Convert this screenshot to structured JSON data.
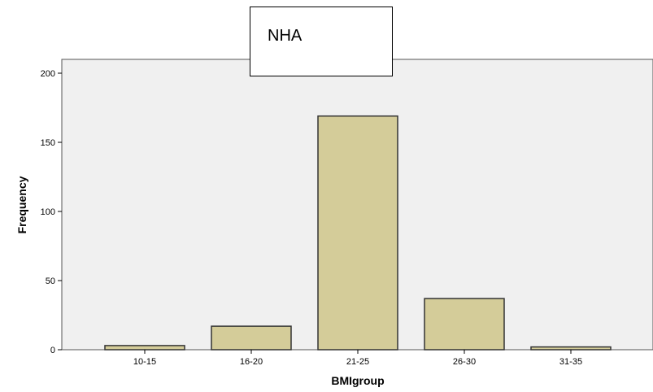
{
  "chart_data": {
    "type": "bar",
    "title": "NHA",
    "xlabel": "BMIgroup",
    "ylabel": "Frequency",
    "categories": [
      "10-15",
      "16-20",
      "21-25",
      "26-30",
      "31-35"
    ],
    "values": [
      3,
      17,
      169,
      37,
      2
    ],
    "ylim": [
      0,
      210
    ],
    "yticks": [
      0,
      50,
      100,
      150,
      200
    ],
    "grid": false,
    "colors": {
      "bar_fill": "#d4cc99",
      "bar_stroke": "#333333",
      "plot_background": "#f0f0f0"
    }
  }
}
